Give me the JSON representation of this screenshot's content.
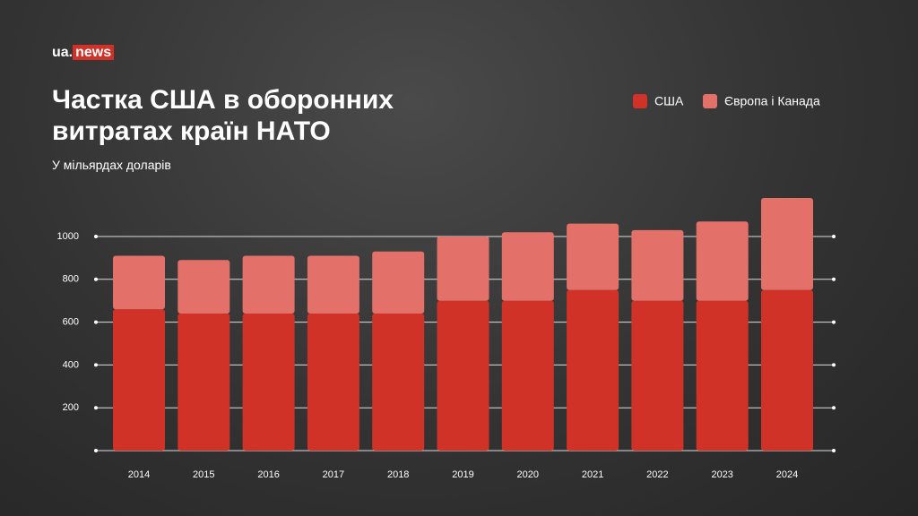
{
  "logo": {
    "prefix": "ua.",
    "suffix": "news"
  },
  "chart_data": {
    "type": "stacked_bar",
    "title": "Частка США в оборонних витратах країн НАТО",
    "subtitle": "У мільярдах доларів",
    "categories": [
      "2014",
      "2015",
      "2016",
      "2017",
      "2018",
      "2019",
      "2020",
      "2021",
      "2022",
      "2023",
      "2024"
    ],
    "series": [
      {
        "name": "США",
        "color": "#d13227",
        "values": [
          660,
          640,
          640,
          640,
          640,
          700,
          700,
          750,
          700,
          700,
          750
        ]
      },
      {
        "name": "Європа і Канада",
        "color": "#e4706a",
        "values": [
          250,
          250,
          270,
          270,
          290,
          300,
          320,
          310,
          330,
          370,
          430
        ]
      }
    ],
    "ylim": [
      0,
      1200
    ],
    "yticks": [
      200,
      400,
      600,
      800,
      1000
    ],
    "grid": true,
    "legend": "top-right"
  }
}
